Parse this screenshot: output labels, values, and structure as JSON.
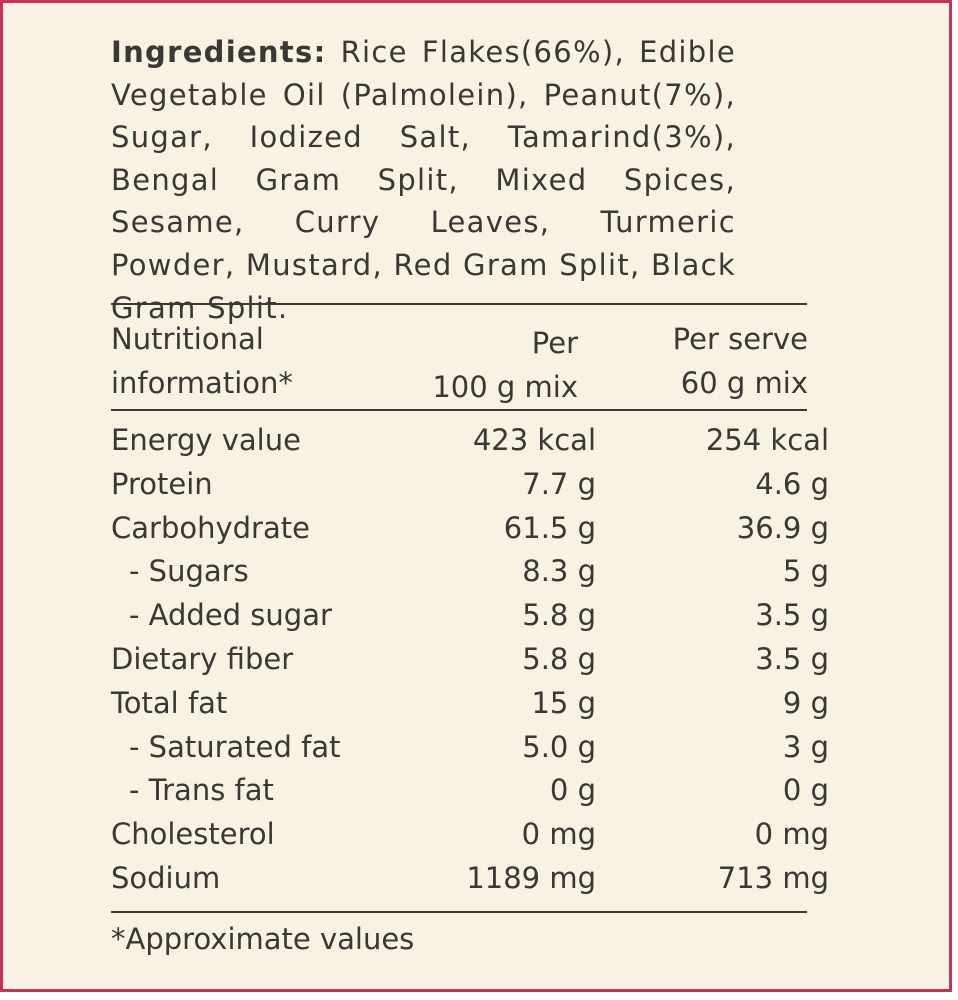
{
  "ingredients": {
    "label": "Ingredients:",
    "text": "Rice Flakes(66%), Edible Vegetable Oil (Palmolein), Peanut(7%), Sugar, Iodized Salt, Tamarind(3%), Bengal Gram Split, Mixed Spices, Sesame, Curry Leaves, Turmeric Powder, Mustard, Red Gram Split, Black Gram Split."
  },
  "nutrition": {
    "header": {
      "name_line1": "Nutritional",
      "name_line2": "information*",
      "per100_line1": "Per",
      "per100_line2": "100 g mix",
      "serve_line1": "Per serve",
      "serve_line2": "60 g mix"
    },
    "rows": [
      {
        "name": "Energy value",
        "per100": "423 kcal",
        "serve": "254 kcal"
      },
      {
        "name": "Protein",
        "per100": "7.7 g",
        "serve": "4.6 g"
      },
      {
        "name": "Carbohydrate",
        "per100": "61.5 g",
        "serve": "36.9 g"
      },
      {
        "name": "- Sugars",
        "per100": "8.3 g",
        "serve": "5 g"
      },
      {
        "name": "- Added sugar",
        "per100": "5.8 g",
        "serve": "3.5 g"
      },
      {
        "name": "Dietary fiber",
        "per100": "5.8 g",
        "serve": "3.5 g"
      },
      {
        "name": "Total fat",
        "per100": "15 g",
        "serve": "9 g"
      },
      {
        "name": "- Saturated fat",
        "per100": "5.0 g",
        "serve": "3 g"
      },
      {
        "name": "- Trans fat",
        "per100": "0 g",
        "serve": "0 g"
      },
      {
        "name": "Cholesterol",
        "per100": "0 mg",
        "serve": "0 mg"
      },
      {
        "name": "Sodium",
        "per100": "1189 mg",
        "serve": "713 mg"
      }
    ],
    "footnote": "*Approximate values"
  }
}
